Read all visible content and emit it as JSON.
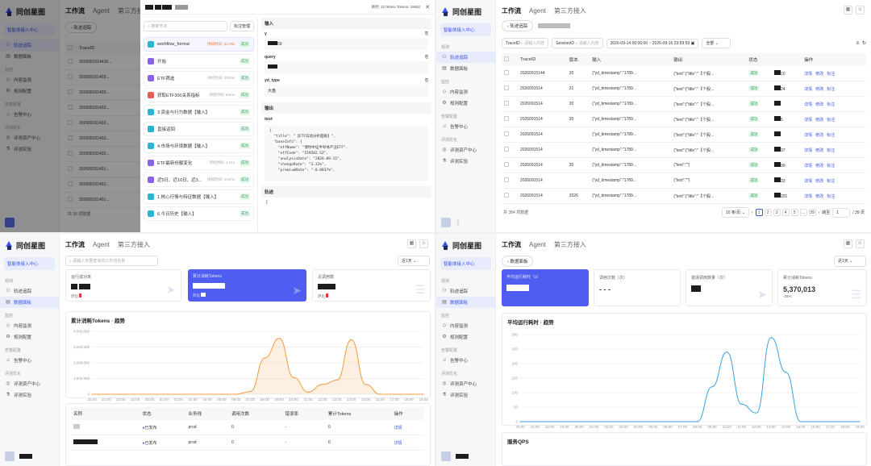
{
  "brand": "同创星图",
  "nav": {
    "tabs": [
      "工作流",
      "Agent",
      "第三方接入"
    ],
    "agent_center": "智能体接入中心",
    "trace": "轨迹追踪",
    "dashboard": "数据面板",
    "sec_monitor": "监控",
    "content_monitor": "内容监测",
    "rules": "规则配置",
    "sec_alert": "告警配置",
    "alert_center": "告警中心",
    "sec_eval": "评测优化",
    "eval_assets": "评测资产中心",
    "eval_exp": "评测实验"
  },
  "p1": {
    "back": "轨迹追踪",
    "col_trace": "TraceID",
    "rows": [
      "2026091514410...",
      "202609151403...",
      "202609151402...",
      "202609151402...",
      "202609151402...",
      "202609151402...",
      "202609151402...",
      "202609151401...",
      "202609151401...",
      "202609151401..."
    ],
    "total": "共 35 项数据",
    "modal": {
      "stats": "耗时: 31782ms  Tokens: 18652",
      "search_ph": "搜索节点",
      "manage_btn": "标注管理",
      "workflow": "workflow_formal",
      "workflow_ms": "持续时间: 31.78s",
      "nodes": [
        {
          "label": "开始",
          "icon": "p",
          "ms": ""
        },
        {
          "label": "ETF筛选",
          "icon": "p",
          "ms": "持续时间: 200ms"
        },
        {
          "label": "获取ETF300关系指标",
          "icon": "r",
          "ms": "持续时间: 64ms"
        },
        {
          "label": "3.资金与行为数据【输入】",
          "icon": "c",
          "ms": ""
        },
        {
          "label": "直接返回",
          "icon": "c",
          "ms": ""
        },
        {
          "label": "4.市场与环境数据【输入】",
          "icon": "c",
          "ms": ""
        },
        {
          "label": "ETF最新份额变化",
          "icon": "p",
          "ms": "持续时间: 1.41s"
        },
        {
          "label": "近5日、近10日、近3...",
          "icon": "p",
          "ms": "持续时间: 422ms"
        },
        {
          "label": "1.核心行情与特征数据【输入】",
          "icon": "c",
          "ms": ""
        },
        {
          "label": "6.今日历史【输入】",
          "icon": "c",
          "ms": ""
        }
      ],
      "ok": "成功",
      "input_title": "输入",
      "output_title": "输出",
      "track_title": "轨迹",
      "fields": [
        {
          "k": "y",
          "v": "59"
        },
        {
          "k": "query",
          "v": ""
        },
        {
          "k": "yd_type",
          "v": "大盘"
        }
      ],
      "text_label": "text",
      "json_lines": [
        "{",
        "  \"title\": \"【ETF异动分析面板】\",",
        "  \"baseInfo\": {",
        "    \"etfName\": \"博时中证半导体产业ETF\",",
        "    \"etfCode\": \"159582.SZ\",",
        "    \"analysisDate\": \"2026-09-15\",",
        "    \"changeRate\": \"3.32%\",",
        "    \"premiumRate\": \"-0.0837%\","
      ]
    }
  },
  "p2": {
    "back": "轨迹追踪",
    "trace_label": "TraceID",
    "trace_ph": "请输入内容",
    "session_label": "SessionID",
    "session_ph": "请输入内容",
    "date_from": "2026-09-14 00:00:00",
    "date_sep": "~",
    "date_to": "2026-09-15 23:59:59",
    "status_filter": "全部",
    "cols": [
      "TraceID",
      "版本",
      "输入",
      "输出",
      "状态",
      "",
      "操作"
    ],
    "rows": [
      {
        "id": "20260915144",
        "ver": "20",
        "in": "{\"yd_timestamp\":\"1789...",
        "out": "{\"text\":{\"title\":\"【个股...",
        "num": "10"
      },
      {
        "id": "2026091514",
        "ver": "21",
        "in": "{\"yd_timestamp\":\"1789...",
        "out": "{\"text\":{\"title\":\"【个股...",
        "num": "24"
      },
      {
        "id": "2026091514",
        "ver": "20",
        "in": "{\"yd_timestamp\":\"1789...",
        "out": "{\"text\":{\"title\":\"【个股...",
        "num": ""
      },
      {
        "id": "2026091514",
        "ver": "20",
        "in": "{\"yd_timestamp\":\"1789...",
        "out": "{\"text\":{\"title\":\"【个股...",
        "num": "5"
      },
      {
        "id": "2026091514",
        "ver": "",
        "in": "{\"yd_timestamp\":\"1789...",
        "out": "{\"text\":{\"title\":\"【个股...",
        "num": ""
      },
      {
        "id": "2026091514",
        "ver": "",
        "in": "{\"yd_timestamp\":\"1789...",
        "out": "{\"text\":{\"title\":\"【个股...",
        "num": "37"
      },
      {
        "id": "2026091514",
        "ver": "20",
        "in": "{\"yd_timestamp\":\"1789...",
        "out": "{\"text\":\"\"}",
        "num": "99"
      },
      {
        "id": "2026091514",
        "ver": "",
        "in": "{\"yd_timestamp\":\"1789...",
        "out": "{\"text\":\"\"}",
        "num": "33"
      },
      {
        "id": "2026091514",
        "ver": "2026",
        "in": "{\"yd_timestamp\":\"1789...",
        "out": "{\"text\":{\"title\":\"【个股...",
        "num": "201"
      }
    ],
    "status_ok": "成功",
    "act_detail": "详情",
    "act_edit": "修改",
    "act_tag": "标注",
    "total": "共 384 项数据",
    "page_size": "10 条/页",
    "pages": [
      "1",
      "2",
      "3",
      "4",
      "5",
      "...",
      "39"
    ],
    "goto": "跳至",
    "goto_val": "1",
    "page_of": "/ 39 页"
  },
  "p3": {
    "search_ph": "请输入你要查询的工作流名称",
    "range": "近1天",
    "kpi": [
      {
        "label": "运行成功率",
        "sub": "环比"
      },
      {
        "label": "累计消耗Tokens",
        "sub": "环比"
      },
      {
        "label": "总调用数",
        "sub": "环比"
      }
    ],
    "chart_title": "累计消耗Tokens · 趋势",
    "table_cols": [
      "名称",
      "状态",
      "业务线",
      "调用次数",
      "错误率",
      "累计Tokens",
      "操作"
    ],
    "table_rows": [
      {
        "name": "",
        "status": "已发布",
        "biz": "prod",
        "calls": "0",
        "err": "-",
        "tok": "0",
        "op": "详情"
      },
      {
        "name": "",
        "status": "已发布",
        "biz": "prod",
        "calls": "0",
        "err": "-",
        "tok": "0",
        "op": "详情"
      }
    ]
  },
  "p4": {
    "back": "数据面板",
    "range": "近1天",
    "kpi": [
      {
        "label": "平均运行耗时（s）"
      },
      {
        "label": "调用次数（次）",
        "val": "- - -"
      },
      {
        "label": "错误调用数量（次）"
      },
      {
        "label": "累计消耗Tokens",
        "val": "5,370,013",
        "sub": "-25%"
      }
    ],
    "chart_title": "平均运行耗时 · 趋势",
    "qps_title": "服务QPS"
  },
  "chart_data": [
    {
      "type": "area",
      "title": "累计消耗Tokens · 趋势",
      "x": [
        "20:00",
        "21:00",
        "22:00",
        "23:00",
        "00:00",
        "01:00",
        "02:00",
        "03:00",
        "04:00",
        "05:00",
        "06:00",
        "07:00",
        "08:00",
        "09:00",
        "10:00",
        "11:00",
        "12:00",
        "13:00",
        "14:00",
        "15:00",
        "16:00",
        "17:00",
        "18:00",
        "19:00"
      ],
      "y": [
        0,
        0,
        0,
        0,
        0,
        0,
        0,
        0,
        0,
        0,
        0,
        200000,
        2600000,
        4000000,
        1200000,
        150000,
        700000,
        1000000,
        3900000,
        700000,
        0,
        0,
        0,
        0
      ],
      "ylim": [
        0,
        4500000
      ],
      "yticks": [
        "0",
        "1,000,000",
        "2,000,000",
        "3,000,000",
        "4,000,000"
      ],
      "color": "#f39b3c"
    },
    {
      "type": "line",
      "title": "平均运行耗时 · 趋势",
      "x": [
        "20:00",
        "21:00",
        "22:00",
        "23:00",
        "00:00",
        "01:00",
        "02:00",
        "03:00",
        "04:00",
        "05:00",
        "06:00",
        "07:00",
        "08:00",
        "09:00",
        "10:00",
        "11:00",
        "12:00",
        "13:00",
        "14:00",
        "15:00",
        "16:00",
        "17:00",
        "18:00",
        "19:00"
      ],
      "y": [
        0,
        0,
        0,
        0,
        0,
        0,
        0,
        0,
        0,
        0,
        0,
        0,
        0,
        120,
        240,
        60,
        30,
        290,
        170,
        0,
        0,
        0,
        0,
        0
      ],
      "ylim": [
        0,
        300
      ],
      "yticks": [
        "0",
        "50",
        "100",
        "150",
        "200",
        "250",
        "300"
      ],
      "color": "#3aa0e0"
    }
  ]
}
